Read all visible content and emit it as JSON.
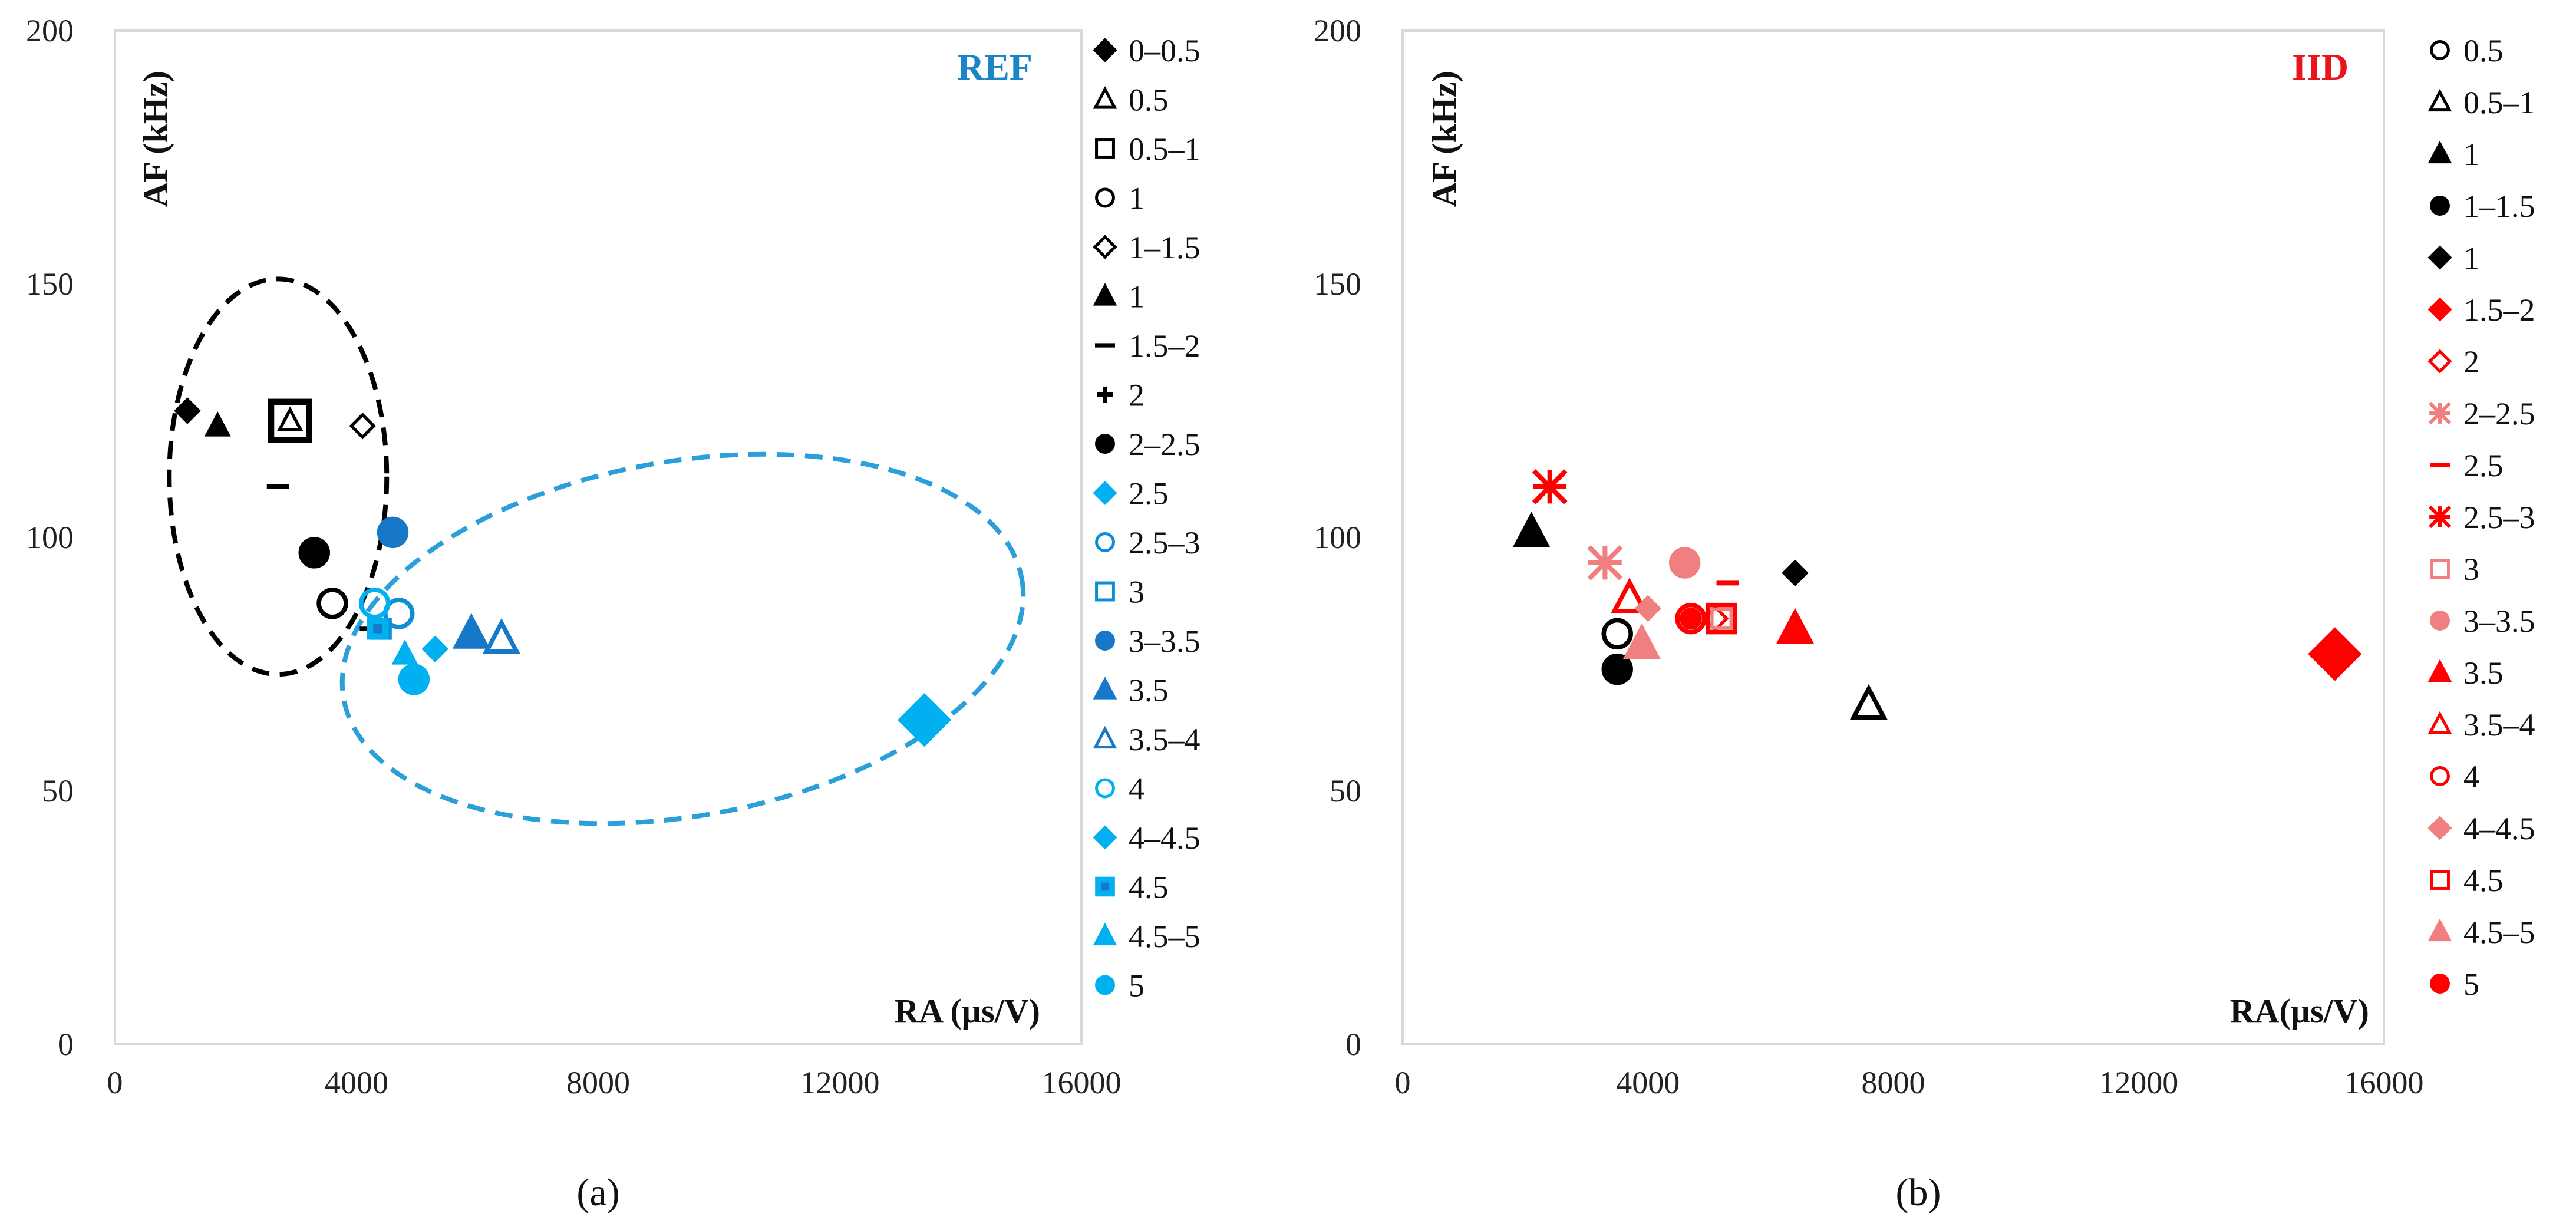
{
  "chart_data": [
    {
      "id": "a",
      "type": "scatter",
      "title": "REF",
      "title_color": "#1a86c8",
      "caption": "(a)",
      "xlabel": "RA (µs/V)",
      "ylabel": "AF (kHz)",
      "xlim": [
        0,
        16000
      ],
      "ylim": [
        0,
        200
      ],
      "xticks": [
        "0",
        "4000",
        "8000",
        "12000",
        "16000"
      ],
      "yticks": [
        "0",
        "50",
        "100",
        "150",
        "200"
      ],
      "grid": false,
      "legend_position": "right",
      "series": [
        {
          "name": "0–0.5",
          "marker": "diamond",
          "color": "#000000",
          "fill": true,
          "size": "small",
          "x": 1200,
          "y": 125
        },
        {
          "name": "0.5",
          "marker": "triangle",
          "color": "#000000",
          "fill": false,
          "size": "small",
          "x": 2900,
          "y": 123
        },
        {
          "name": "0.5–1",
          "marker": "square",
          "color": "#000000",
          "fill": false,
          "size": "large",
          "x": 2900,
          "y": 123
        },
        {
          "name": "1",
          "marker": "circle",
          "color": "#000000",
          "fill": false,
          "size": "medium",
          "x": 3600,
          "y": 87
        },
        {
          "name": "1–1.5",
          "marker": "diamond",
          "color": "#000000",
          "fill": false,
          "size": "small",
          "x": 4100,
          "y": 122
        },
        {
          "name": "1",
          "marker": "triangle",
          "color": "#000000",
          "fill": true,
          "size": "small",
          "x": 1700,
          "y": 122
        },
        {
          "name": "1.5–2",
          "marker": "dash",
          "color": "#000000",
          "fill": true,
          "size": "small",
          "x": 2700,
          "y": 110
        },
        {
          "name": "2",
          "marker": "plus",
          "color": "#000000",
          "fill": true,
          "size": "small",
          "x": 4200,
          "y": 82
        },
        {
          "name": "2–2.5",
          "marker": "circle",
          "color": "#000000",
          "fill": true,
          "size": "medium",
          "x": 3300,
          "y": 97
        },
        {
          "name": "2.5",
          "marker": "diamond",
          "color": "#00b0f0",
          "fill": true,
          "size": "large",
          "x": 13400,
          "y": 64
        },
        {
          "name": "2.5–3",
          "marker": "circle",
          "color": "#0f8ed8",
          "fill": false,
          "size": "medium",
          "x": 4700,
          "y": 85
        },
        {
          "name": "3",
          "marker": "square",
          "color": "#0f8ed8",
          "fill": false,
          "size": "small",
          "x": 4400,
          "y": 82
        },
        {
          "name": "3–3.5",
          "marker": "circle",
          "color": "#1777c9",
          "fill": true,
          "size": "medium",
          "x": 4600,
          "y": 101
        },
        {
          "name": "3.5",
          "marker": "triangle",
          "color": "#1777c9",
          "fill": true,
          "size": "medium",
          "x": 5900,
          "y": 81
        },
        {
          "name": "3.5–4",
          "marker": "triangle",
          "color": "#1777c9",
          "fill": false,
          "size": "medium",
          "x": 6400,
          "y": 80
        },
        {
          "name": "4",
          "marker": "circle",
          "color": "#00b0f0",
          "fill": false,
          "size": "medium",
          "x": 4300,
          "y": 87
        },
        {
          "name": "4–4.5",
          "marker": "diamond",
          "color": "#00b0f0",
          "fill": true,
          "size": "small",
          "x": 5300,
          "y": 78
        },
        {
          "name": "4.5",
          "marker": "square-dot",
          "color": "#00b0f0",
          "fill": true,
          "size": "small",
          "x": 4350,
          "y": 82
        },
        {
          "name": "4.5–5",
          "marker": "triangle",
          "color": "#00b0f0",
          "fill": true,
          "size": "small",
          "x": 4800,
          "y": 77
        },
        {
          "name": "5",
          "marker": "circle",
          "color": "#00b0f0",
          "fill": true,
          "size": "medium",
          "x": 4950,
          "y": 72
        }
      ],
      "annotations": [
        {
          "shape": "ellipse",
          "color": "#000000",
          "cx": 2700,
          "cy": 112,
          "rx": 1800,
          "ry": 39
        },
        {
          "shape": "ellipse",
          "color": "#2b9fd9",
          "cx": 9400,
          "cy": 80,
          "rx": 5700,
          "ry": 35,
          "rotation_deg": 10
        }
      ]
    },
    {
      "id": "b",
      "type": "scatter",
      "title": "IID",
      "title_color": "#e8161c",
      "caption": "(b)",
      "xlabel": "RA(µs/V)",
      "ylabel": "AF (kHz)",
      "xlim": [
        0,
        16000
      ],
      "ylim": [
        0,
        200
      ],
      "xticks": [
        "0",
        "4000",
        "8000",
        "12000",
        "16000"
      ],
      "yticks": [
        "0",
        "50",
        "100",
        "150",
        "200"
      ],
      "grid": false,
      "legend_position": "right",
      "series": [
        {
          "name": "0.5",
          "marker": "circle",
          "color": "#000000",
          "fill": false,
          "size": "medium",
          "x": 3500,
          "y": 81
        },
        {
          "name": "0.5–1",
          "marker": "triangle",
          "color": "#000000",
          "fill": false,
          "size": "medium",
          "x": 7600,
          "y": 67
        },
        {
          "name": "1",
          "marker": "triangle",
          "color": "#000000",
          "fill": true,
          "size": "medium",
          "x": 2100,
          "y": 101
        },
        {
          "name": "1–1.5",
          "marker": "circle",
          "color": "#000000",
          "fill": true,
          "size": "medium",
          "x": 3500,
          "y": 74
        },
        {
          "name": "1",
          "marker": "diamond",
          "color": "#000000",
          "fill": true,
          "size": "small",
          "x": 6400,
          "y": 93
        },
        {
          "name": "1.5–2",
          "marker": "diamond",
          "color": "#ff0000",
          "fill": true,
          "size": "large",
          "x": 15200,
          "y": 77
        },
        {
          "name": "2",
          "marker": "diamond",
          "color": "#ff0000",
          "fill": false,
          "size": "small",
          "x": 5100,
          "y": 84
        },
        {
          "name": "2–2.5",
          "marker": "asterisk",
          "color": "#f08080",
          "fill": true,
          "size": "medium",
          "x": 3300,
          "y": 95
        },
        {
          "name": "2.5",
          "marker": "dash",
          "color": "#ff0000",
          "fill": true,
          "size": "small",
          "x": 5300,
          "y": 91
        },
        {
          "name": "2.5–3",
          "marker": "asterisk",
          "color": "#ff0000",
          "fill": true,
          "size": "medium",
          "x": 2400,
          "y": 110
        },
        {
          "name": "3",
          "marker": "square",
          "color": "#f08080",
          "fill": false,
          "size": "small",
          "x": 5200,
          "y": 84
        },
        {
          "name": "3–3.5",
          "marker": "circle",
          "color": "#f08080",
          "fill": true,
          "size": "medium",
          "x": 4600,
          "y": 95
        },
        {
          "name": "3.5",
          "marker": "triangle",
          "color": "#ff0000",
          "fill": true,
          "size": "medium",
          "x": 6400,
          "y": 82
        },
        {
          "name": "3.5–4",
          "marker": "triangle",
          "color": "#ff0000",
          "fill": false,
          "size": "medium",
          "x": 3700,
          "y": 88
        },
        {
          "name": "4",
          "marker": "circle",
          "color": "#ff0000",
          "fill": false,
          "size": "medium",
          "x": 4700,
          "y": 84
        },
        {
          "name": "4–4.5",
          "marker": "diamond",
          "color": "#f08080",
          "fill": true,
          "size": "small",
          "x": 4000,
          "y": 86
        },
        {
          "name": "4.5",
          "marker": "square",
          "color": "#ff0000",
          "fill": false,
          "size": "medium",
          "x": 5200,
          "y": 84
        },
        {
          "name": "4.5–5",
          "marker": "triangle",
          "color": "#f08080",
          "fill": true,
          "size": "medium",
          "x": 3900,
          "y": 79
        },
        {
          "name": "5",
          "marker": "circle",
          "color": "#ff0000",
          "fill": true,
          "size": "small",
          "x": 4700,
          "y": 84
        }
      ]
    }
  ]
}
